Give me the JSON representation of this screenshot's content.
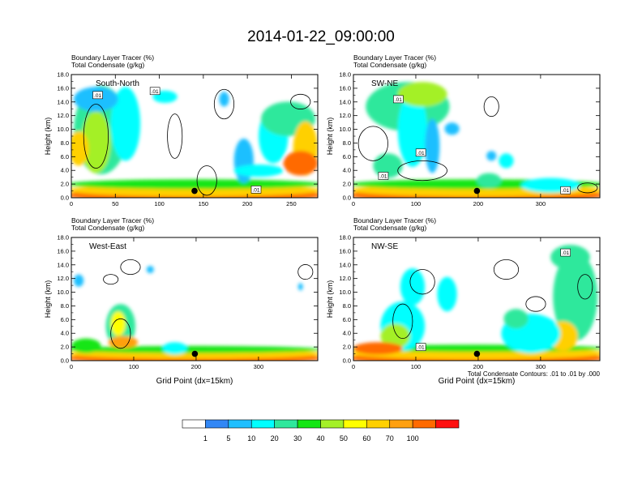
{
  "figure": {
    "title": "2014-01-22_09:00:00",
    "contour_note": "Total Condensate Contours: .01 to .01 by .000"
  },
  "colorbar": {
    "colors": [
      "#ffffff",
      "#3287f5",
      "#1fbfff",
      "#00ffff",
      "#2ee89c",
      "#14e614",
      "#a4f028",
      "#ffff00",
      "#ffd000",
      "#ffa010",
      "#ff6a00",
      "#ff1010"
    ],
    "labels": [
      "1",
      "5",
      "10",
      "20",
      "30",
      "40",
      "50",
      "60",
      "70",
      "100"
    ]
  },
  "chart_data": [
    {
      "type": "heatmap",
      "label": "South-North",
      "title_lines": [
        "Boundary Layer Tracer   (%)",
        "Total Condensate   (g/kg)"
      ],
      "ylabel": "Height (km)",
      "xlabel": "",
      "xlim": [
        0,
        280
      ],
      "ylim": [
        0,
        18
      ],
      "xticks": [
        "0",
        "50",
        "100",
        "150",
        "200",
        "250"
      ],
      "yticks": [
        "0.0",
        "2.0",
        "4.0",
        "6.0",
        "8.0",
        "10.0",
        "12.0",
        "14.0",
        "16.0",
        "18.0"
      ],
      "contour_labels": [
        {
          "x": 30,
          "y": 15.0,
          "text": ".01"
        },
        {
          "x": 95,
          "y": 15.6,
          "text": ".01"
        },
        {
          "x": 210,
          "y": 1.2,
          "text": ".01"
        }
      ],
      "marker": {
        "x": 140,
        "y": 1.0
      }
    },
    {
      "type": "heatmap",
      "label": "SW-NE",
      "title_lines": [
        "Boundary Layer Tracer   (%)",
        "Total Condensate   (g/kg)"
      ],
      "ylabel": "Height (km)",
      "xlabel": "",
      "xlim": [
        0,
        395
      ],
      "ylim": [
        0,
        18
      ],
      "xticks": [
        "0",
        "100",
        "200",
        "300"
      ],
      "yticks": [
        "0.0",
        "2.0",
        "4.0",
        "6.0",
        "8.0",
        "10.0",
        "12.0",
        "14.0",
        "16.0",
        "18.0"
      ],
      "contour_labels": [
        {
          "x": 72,
          "y": 14.4,
          "text": ".01"
        },
        {
          "x": 108,
          "y": 6.6,
          "text": ".01"
        },
        {
          "x": 48,
          "y": 3.2,
          "text": ".01"
        },
        {
          "x": 340,
          "y": 1.1,
          "text": ".01"
        }
      ],
      "marker": {
        "x": 198,
        "y": 1.0
      }
    },
    {
      "type": "heatmap",
      "label": "West-East",
      "title_lines": [
        "Boundary Layer Tracer   (%)",
        "Total Condensate   (g/kg)"
      ],
      "ylabel": "Height (km)",
      "xlabel": "Grid Point (dx=15km)",
      "xlim": [
        0,
        395
      ],
      "ylim": [
        0,
        18
      ],
      "xticks": [
        "0",
        "100",
        "200",
        "300"
      ],
      "yticks": [
        "0.0",
        "2.0",
        "4.0",
        "6.0",
        "8.0",
        "10.0",
        "12.0",
        "14.0",
        "16.0",
        "18.0"
      ],
      "contour_labels": [],
      "marker": {
        "x": 198,
        "y": 1.0
      }
    },
    {
      "type": "heatmap",
      "label": "NW-SE",
      "title_lines": [
        "Boundary Layer Tracer   (%)",
        "Total Condensate   (g/kg)"
      ],
      "ylabel": "Height (km)",
      "xlabel": "Grid Point (dx=15km)",
      "xlim": [
        0,
        395
      ],
      "ylim": [
        0,
        18
      ],
      "xticks": [
        "0",
        "100",
        "200",
        "300"
      ],
      "yticks": [
        "0.0",
        "2.0",
        "4.0",
        "6.0",
        "8.0",
        "10.0",
        "12.0",
        "14.0",
        "16.0",
        "18.0"
      ],
      "contour_labels": [
        {
          "x": 108,
          "y": 2.0,
          "text": ".01"
        },
        {
          "x": 340,
          "y": 15.8,
          "text": ".01"
        }
      ],
      "marker": {
        "x": 198,
        "y": 1.0
      }
    }
  ]
}
